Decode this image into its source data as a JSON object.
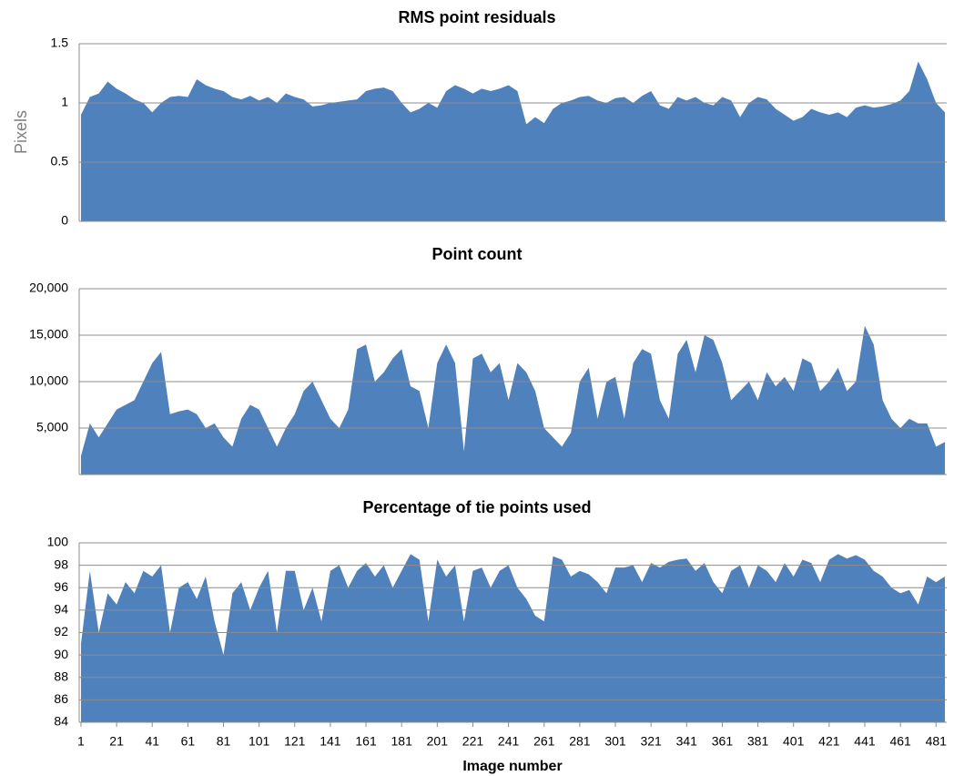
{
  "chart_data": [
    {
      "type": "area",
      "title": "RMS point residuals",
      "y_label": "Pixels",
      "color": "#4f81bd",
      "grid": true,
      "ylim": [
        0,
        1.5
      ],
      "yticks": [
        0,
        0.5,
        1,
        1.5
      ],
      "xlim": [
        0,
        487
      ],
      "x": [
        1,
        6,
        11,
        16,
        21,
        26,
        31,
        36,
        41,
        46,
        51,
        56,
        61,
        66,
        71,
        76,
        81,
        86,
        91,
        96,
        101,
        106,
        111,
        116,
        121,
        126,
        131,
        136,
        141,
        146,
        151,
        156,
        161,
        166,
        171,
        176,
        181,
        186,
        191,
        196,
        201,
        206,
        211,
        216,
        221,
        226,
        231,
        236,
        241,
        246,
        251,
        256,
        261,
        266,
        271,
        276,
        281,
        286,
        291,
        296,
        301,
        306,
        311,
        316,
        321,
        326,
        331,
        336,
        341,
        346,
        351,
        356,
        361,
        366,
        371,
        376,
        381,
        386,
        391,
        396,
        401,
        406,
        411,
        416,
        421,
        426,
        431,
        436,
        441,
        446,
        451,
        456,
        461,
        466,
        471,
        476,
        481,
        486
      ],
      "values": [
        0.9,
        1.05,
        1.08,
        1.18,
        1.12,
        1.08,
        1.03,
        1.0,
        0.92,
        1.0,
        1.05,
        1.06,
        1.05,
        1.2,
        1.15,
        1.12,
        1.1,
        1.05,
        1.03,
        1.06,
        1.02,
        1.05,
        1.0,
        1.08,
        1.05,
        1.03,
        0.97,
        0.98,
        1.0,
        1.01,
        1.02,
        1.03,
        1.1,
        1.12,
        1.13,
        1.1,
        1.0,
        0.92,
        0.95,
        1.0,
        0.96,
        1.1,
        1.15,
        1.12,
        1.08,
        1.12,
        1.1,
        1.12,
        1.15,
        1.1,
        0.82,
        0.88,
        0.83,
        0.95,
        1.0,
        1.02,
        1.05,
        1.06,
        1.02,
        1.0,
        1.04,
        1.05,
        1.0,
        1.06,
        1.1,
        0.98,
        0.95,
        1.05,
        1.02,
        1.05,
        1.0,
        0.98,
        1.05,
        1.02,
        0.88,
        1.0,
        1.05,
        1.03,
        0.95,
        0.9,
        0.85,
        0.88,
        0.95,
        0.92,
        0.9,
        0.92,
        0.88,
        0.96,
        0.98,
        0.96,
        0.97,
        0.99,
        1.02,
        1.1,
        1.35,
        1.2,
        1.0,
        0.92
      ]
    },
    {
      "type": "area",
      "title": "Point count",
      "color": "#4f81bd",
      "grid": true,
      "ylim": [
        0,
        20000
      ],
      "yticks": [
        {
          "value": 5000,
          "label": "5,000"
        },
        {
          "value": 10000,
          "label": "10,000"
        },
        {
          "value": 15000,
          "label": "15,000"
        },
        {
          "value": 20000,
          "label": "20,000"
        }
      ],
      "xlim": [
        0,
        487
      ],
      "x": [
        1,
        6,
        11,
        16,
        21,
        26,
        31,
        36,
        41,
        46,
        51,
        56,
        61,
        66,
        71,
        76,
        81,
        86,
        91,
        96,
        101,
        106,
        111,
        116,
        121,
        126,
        131,
        136,
        141,
        146,
        151,
        156,
        161,
        166,
        171,
        176,
        181,
        186,
        191,
        196,
        201,
        206,
        211,
        216,
        221,
        226,
        231,
        236,
        241,
        246,
        251,
        256,
        261,
        266,
        271,
        276,
        281,
        286,
        291,
        296,
        301,
        306,
        311,
        316,
        321,
        326,
        331,
        336,
        341,
        346,
        351,
        356,
        361,
        366,
        371,
        376,
        381,
        386,
        391,
        396,
        401,
        406,
        411,
        416,
        421,
        426,
        431,
        436,
        441,
        446,
        451,
        456,
        461,
        466,
        471,
        476,
        481,
        486
      ],
      "values": [
        2000,
        5500,
        4000,
        5500,
        7000,
        7500,
        8000,
        10000,
        12000,
        13200,
        6500,
        6800,
        7000,
        6500,
        5000,
        5500,
        4000,
        3000,
        6000,
        7500,
        7000,
        5000,
        3000,
        5000,
        6500,
        9000,
        10000,
        8000,
        6000,
        5000,
        7000,
        13500,
        14000,
        10000,
        11000,
        12500,
        13500,
        9500,
        9000,
        5000,
        12000,
        14000,
        12000,
        2500,
        12500,
        13000,
        11000,
        12000,
        8000,
        12000,
        11000,
        9000,
        5000,
        4000,
        3000,
        4500,
        10000,
        11500,
        6000,
        10000,
        10500,
        6000,
        12000,
        13500,
        13000,
        8000,
        6000,
        13000,
        14500,
        11000,
        15000,
        14500,
        12000,
        8000,
        9000,
        10000,
        8000,
        11000,
        9500,
        10500,
        9000,
        12500,
        12000,
        9000,
        10000,
        11500,
        9000,
        10000,
        16000,
        14000,
        8000,
        6000,
        5000,
        6000,
        5500,
        5500,
        3000,
        3500
      ]
    },
    {
      "type": "area",
      "title": "Percentage of tie points used",
      "x_label": "Image number",
      "color": "#4f81bd",
      "grid": true,
      "ylim": [
        84,
        100
      ],
      "yticks": [
        84,
        86,
        88,
        90,
        92,
        94,
        96,
        98,
        100
      ],
      "xlim": [
        0,
        487
      ],
      "xticks": [
        1,
        21,
        41,
        61,
        81,
        101,
        121,
        141,
        161,
        181,
        201,
        221,
        241,
        261,
        281,
        301,
        321,
        341,
        361,
        381,
        401,
        421,
        441,
        461,
        481
      ],
      "x": [
        1,
        6,
        11,
        16,
        21,
        26,
        31,
        36,
        41,
        46,
        51,
        56,
        61,
        66,
        71,
        76,
        81,
        86,
        91,
        96,
        101,
        106,
        111,
        116,
        121,
        126,
        131,
        136,
        141,
        146,
        151,
        156,
        161,
        166,
        171,
        176,
        181,
        186,
        191,
        196,
        201,
        206,
        211,
        216,
        221,
        226,
        231,
        236,
        241,
        246,
        251,
        256,
        261,
        266,
        271,
        276,
        281,
        286,
        291,
        296,
        301,
        306,
        311,
        316,
        321,
        326,
        331,
        336,
        341,
        346,
        351,
        356,
        361,
        366,
        371,
        376,
        381,
        386,
        391,
        396,
        401,
        406,
        411,
        416,
        421,
        426,
        431,
        436,
        441,
        446,
        451,
        456,
        461,
        466,
        471,
        476,
        481,
        486
      ],
      "values": [
        91,
        97.5,
        92,
        95.5,
        94.5,
        96.5,
        95.5,
        97.5,
        97,
        98,
        92,
        96,
        96.5,
        95,
        97,
        93,
        90,
        95.5,
        96.5,
        94,
        96,
        97.5,
        92,
        97.5,
        97.5,
        94,
        96,
        93,
        97.5,
        98,
        96,
        97.5,
        98.2,
        97,
        98,
        96,
        97.5,
        99,
        98.5,
        93,
        98.5,
        97,
        98,
        93,
        97.5,
        97.8,
        96,
        97.5,
        98,
        96,
        95,
        93.5,
        93,
        98.8,
        98.5,
        97,
        97.5,
        97.2,
        96.5,
        95.5,
        97.8,
        97.8,
        98,
        96.5,
        98.2,
        97.8,
        98.3,
        98.5,
        98.6,
        97.5,
        98.2,
        96.5,
        95.5,
        97.5,
        98,
        96,
        98,
        97.5,
        96.5,
        98.2,
        97,
        98.5,
        98.2,
        96.5,
        98.5,
        99,
        98.6,
        98.9,
        98.5,
        97.5,
        97,
        96,
        95.5,
        95.8,
        94.5,
        97,
        96.5,
        97
      ]
    }
  ]
}
